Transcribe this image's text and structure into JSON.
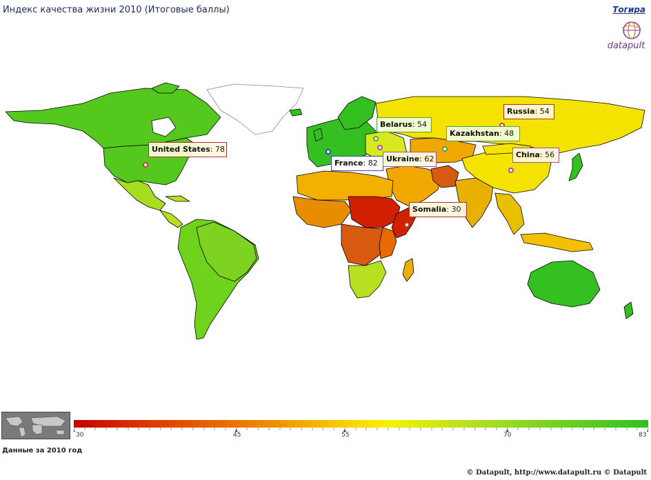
{
  "header": {
    "title": "Индекс качества жизни 2010 (Итоговые баллы)",
    "lang_link": "Тогира"
  },
  "logo": {
    "text": "datapult"
  },
  "map": {
    "colors": {
      "green": "#33c020",
      "light_green": "#7ed320",
      "yellow_green": "#b8e020",
      "yellow": "#f4e200",
      "light_orange": "#f4b000",
      "orange": "#e88c00",
      "dark_orange": "#d85a10",
      "red": "#d02000",
      "ice": "#ffffff",
      "border": "#000000"
    },
    "callouts": [
      {
        "name": "Russia",
        "value": "54"
      },
      {
        "name": "Belarus",
        "value": "54"
      },
      {
        "name": "Kazakhstan",
        "value": "48"
      },
      {
        "name": "United States",
        "value": "78"
      },
      {
        "name": "France",
        "value": "82"
      },
      {
        "name": "Ukraine",
        "value": "62"
      },
      {
        "name": "China",
        "value": "56"
      },
      {
        "name": "Somalia",
        "value": "30"
      }
    ]
  },
  "legend": {
    "min": 30,
    "max": 83,
    "ticks": [
      "30",
      "45",
      "55",
      "70",
      "83"
    ],
    "tick_values": [
      30,
      45,
      55,
      70,
      83
    ]
  },
  "footer": {
    "data_period": "Данные за  2010 год",
    "copyright": "© Datapult, http://www.datapult.ru © Datapult"
  }
}
